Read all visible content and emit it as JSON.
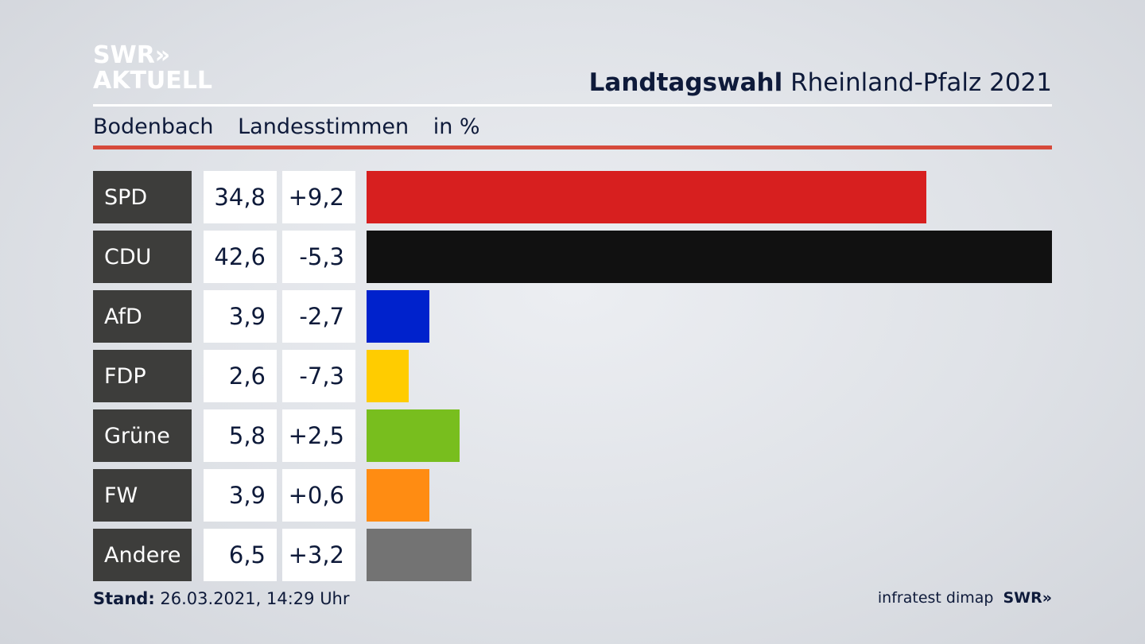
{
  "logo": {
    "line1": "SWR»",
    "line2": "AKTUELL"
  },
  "header": {
    "title_bold": "Landtagswahl",
    "title_rest": "Rheinland-Pfalz 2021",
    "location": "Bodenbach",
    "measure": "Landesstimmen",
    "unit": "in %"
  },
  "colors": {
    "accent_red_rule": "#d64a3b",
    "label_bg": "#3d3d3b"
  },
  "chart_data": {
    "type": "bar",
    "orientation": "horizontal",
    "title": "Landtagswahl Rheinland-Pfalz 2021",
    "subtitle": "Bodenbach Landesstimmen in %",
    "categories": [
      "SPD",
      "CDU",
      "AfD",
      "FDP",
      "Grüne",
      "FW",
      "Andere"
    ],
    "values": [
      34.8,
      42.6,
      3.9,
      2.6,
      5.8,
      3.9,
      6.5
    ],
    "value_labels": [
      "34,8",
      "42,6",
      "3,9",
      "2,6",
      "5,8",
      "3,9",
      "6,5"
    ],
    "change_labels": [
      "+9,2",
      "-5,3",
      "-2,7",
      "-7,3",
      "+2,5",
      "+0,6",
      "+3,2"
    ],
    "colors": [
      "#d71f1f",
      "#111111",
      "#0022cc",
      "#ffcc00",
      "#78be1e",
      "#ff8c12",
      "#737373"
    ],
    "xlim": [
      0,
      42.6
    ]
  },
  "footer": {
    "stand_label": "Stand:",
    "stand_value": "26.03.2021, 14:29 Uhr",
    "source": "infratest dimap",
    "brand": "SWR»"
  }
}
